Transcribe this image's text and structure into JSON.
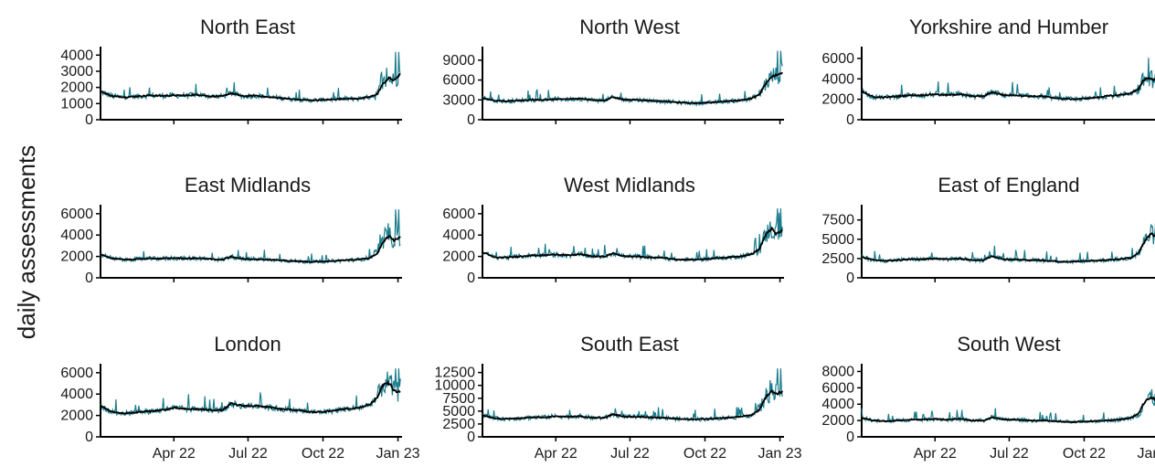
{
  "chart_data": {
    "type": "line",
    "ylabel": "daily assessments",
    "x_ticks": [
      "Apr 22",
      "Jul 22",
      "Oct 22",
      "Jan 23"
    ],
    "x_tick_days": [
      90,
      181,
      273,
      365
    ],
    "x_range_days": [
      0,
      370
    ],
    "colors": {
      "daily": "#1b7d8c",
      "smoothed": "#000000"
    },
    "series_descriptions": [
      "daily count (teal)",
      "rolling average (black)"
    ],
    "panels": [
      {
        "title": "North East",
        "ylim": [
          0,
          4300
        ],
        "yticks": [
          0,
          1000,
          2000,
          3000,
          4000
        ],
        "x": [
          0,
          15,
          30,
          45,
          60,
          75,
          90,
          105,
          120,
          135,
          150,
          160,
          175,
          190,
          205,
          220,
          240,
          260,
          280,
          300,
          315,
          330,
          340,
          345,
          350,
          355,
          360,
          365,
          368
        ],
        "smoothed": [
          1750,
          1450,
          1400,
          1450,
          1500,
          1480,
          1500,
          1500,
          1550,
          1450,
          1450,
          1650,
          1450,
          1500,
          1400,
          1350,
          1250,
          1200,
          1250,
          1300,
          1300,
          1400,
          1600,
          2100,
          2400,
          2600,
          2400,
          2700,
          2800
        ],
        "daily_peak": 4200
      },
      {
        "title": "North West",
        "ylim": [
          0,
          10500
        ],
        "yticks": [
          0,
          3000,
          6000,
          9000
        ],
        "x": [
          0,
          15,
          30,
          45,
          60,
          75,
          90,
          105,
          120,
          135,
          150,
          160,
          175,
          190,
          205,
          220,
          240,
          260,
          280,
          300,
          315,
          330,
          340,
          345,
          350,
          355,
          360,
          365,
          368
        ],
        "smoothed": [
          3300,
          2900,
          2800,
          2900,
          3000,
          3000,
          3100,
          3100,
          3200,
          3000,
          2900,
          3400,
          3000,
          3000,
          2900,
          2800,
          2600,
          2500,
          2600,
          2800,
          2900,
          3200,
          3800,
          5000,
          5800,
          6500,
          6700,
          7000,
          7200
        ],
        "daily_peak": 10400
      },
      {
        "title": "Yorkshire and Humber",
        "ylim": [
          0,
          6800
        ],
        "yticks": [
          0,
          2000,
          4000,
          6000
        ],
        "x": [
          0,
          15,
          30,
          45,
          60,
          75,
          90,
          105,
          120,
          135,
          150,
          160,
          175,
          190,
          205,
          220,
          240,
          260,
          280,
          300,
          315,
          330,
          340,
          345,
          350,
          355,
          360,
          365,
          368
        ],
        "smoothed": [
          2800,
          2200,
          2200,
          2300,
          2400,
          2400,
          2500,
          2400,
          2500,
          2300,
          2300,
          2700,
          2400,
          2400,
          2300,
          2300,
          2100,
          2000,
          2100,
          2300,
          2400,
          2600,
          3000,
          3800,
          4100,
          4000,
          3900,
          4200,
          4300
        ],
        "daily_peak": 6800
      },
      {
        "title": "East Midlands",
        "ylim": [
          0,
          6500
        ],
        "yticks": [
          0,
          2000,
          4000,
          6000
        ],
        "x": [
          0,
          15,
          30,
          45,
          60,
          75,
          90,
          105,
          120,
          135,
          150,
          160,
          175,
          190,
          205,
          220,
          240,
          260,
          280,
          300,
          315,
          330,
          340,
          345,
          350,
          355,
          360,
          365,
          368
        ],
        "smoothed": [
          2200,
          1800,
          1700,
          1750,
          1800,
          1800,
          1850,
          1800,
          1850,
          1750,
          1700,
          2000,
          1750,
          1750,
          1700,
          1650,
          1550,
          1500,
          1550,
          1650,
          1700,
          1850,
          2300,
          3100,
          3700,
          3900,
          3500,
          3700,
          3800
        ],
        "daily_peak": 6400
      },
      {
        "title": "West Midlands",
        "ylim": [
          0,
          6500
        ],
        "yticks": [
          0,
          2000,
          4000,
          6000
        ],
        "x": [
          0,
          15,
          30,
          45,
          60,
          75,
          90,
          105,
          120,
          135,
          150,
          160,
          175,
          190,
          205,
          220,
          240,
          260,
          280,
          300,
          315,
          330,
          340,
          345,
          350,
          355,
          360,
          365,
          368
        ],
        "smoothed": [
          2400,
          1900,
          1900,
          2000,
          2100,
          2100,
          2200,
          2100,
          2200,
          2000,
          2000,
          2300,
          2000,
          2000,
          1900,
          1900,
          1700,
          1700,
          1800,
          1900,
          2000,
          2200,
          2700,
          3600,
          4300,
          4600,
          4100,
          4300,
          4400
        ],
        "daily_peak": 6500
      },
      {
        "title": "East of England",
        "ylim": [
          0,
          9000
        ],
        "yticks": [
          0,
          2500,
          5000,
          7500
        ],
        "x": [
          0,
          15,
          30,
          45,
          60,
          75,
          90,
          105,
          120,
          135,
          150,
          160,
          175,
          190,
          205,
          220,
          240,
          260,
          280,
          300,
          315,
          330,
          340,
          345,
          350,
          355,
          360,
          365,
          368
        ],
        "smoothed": [
          2700,
          2300,
          2200,
          2300,
          2400,
          2400,
          2500,
          2400,
          2500,
          2300,
          2300,
          2800,
          2400,
          2400,
          2300,
          2300,
          2100,
          2100,
          2200,
          2300,
          2400,
          2600,
          3200,
          4300,
          5200,
          5700,
          5400,
          5600,
          5800
        ],
        "daily_peak": 8900
      },
      {
        "title": "London",
        "ylim": [
          0,
          6500
        ],
        "yticks": [
          0,
          2000,
          4000,
          6000
        ],
        "x": [
          0,
          15,
          30,
          45,
          60,
          75,
          90,
          105,
          120,
          135,
          150,
          160,
          175,
          190,
          205,
          220,
          240,
          260,
          280,
          300,
          315,
          330,
          340,
          345,
          350,
          355,
          360,
          365,
          368
        ],
        "smoothed": [
          2900,
          2300,
          2200,
          2300,
          2400,
          2500,
          2700,
          2600,
          2600,
          2500,
          2500,
          3100,
          2900,
          2900,
          2800,
          2600,
          2500,
          2300,
          2400,
          2600,
          2700,
          3000,
          3700,
          4700,
          5100,
          5000,
          4300,
          4200,
          4300
        ],
        "daily_peak": 6400
      },
      {
        "title": "South East",
        "ylim": [
          0,
          13500
        ],
        "yticks": [
          0,
          2500,
          5000,
          7500,
          10000,
          12500
        ],
        "x": [
          0,
          15,
          30,
          45,
          60,
          75,
          90,
          105,
          120,
          135,
          150,
          160,
          175,
          190,
          205,
          220,
          240,
          260,
          280,
          300,
          315,
          330,
          340,
          345,
          350,
          355,
          360,
          365,
          368
        ],
        "smoothed": [
          4200,
          3600,
          3500,
          3600,
          3800,
          3800,
          4000,
          3900,
          4000,
          3700,
          3700,
          4400,
          3900,
          3900,
          3800,
          3700,
          3500,
          3400,
          3500,
          3700,
          3900,
          4200,
          5300,
          7000,
          8200,
          8800,
          8300,
          8600,
          8800
        ],
        "daily_peak": 13300
      },
      {
        "title": "South West",
        "ylim": [
          0,
          8500
        ],
        "yticks": [
          0,
          2000,
          4000,
          6000,
          8000
        ],
        "x": [
          0,
          15,
          30,
          45,
          60,
          75,
          90,
          105,
          120,
          135,
          150,
          160,
          175,
          190,
          205,
          220,
          240,
          260,
          280,
          300,
          315,
          330,
          340,
          345,
          350,
          355,
          360,
          365,
          368
        ],
        "smoothed": [
          2300,
          2000,
          1900,
          2000,
          2100,
          2100,
          2200,
          2100,
          2200,
          2000,
          2000,
          2400,
          2100,
          2100,
          2000,
          2000,
          1900,
          1800,
          1900,
          2000,
          2100,
          2300,
          2900,
          3900,
          4600,
          4800,
          4600,
          4800,
          5000
        ],
        "daily_peak": 8500
      }
    ]
  }
}
